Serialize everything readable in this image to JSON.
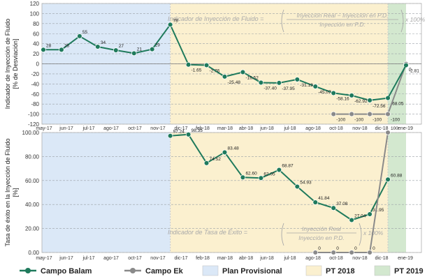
{
  "colors": {
    "balam": "#1f7a5c",
    "ek": "#8a8a8a",
    "plan_provisional": "#dbe8f7",
    "pt2018": "#fbf0cf",
    "pt2019": "#d3e8cf",
    "grid": "#9aa0a6",
    "axis_text": "#333333",
    "formula_text": "#a9a9a9"
  },
  "legend": [
    {
      "label": "Campo Balam",
      "kind": "line",
      "color": "#1f7a5c"
    },
    {
      "label": "Campo Ek",
      "kind": "line",
      "color": "#8a8a8a"
    },
    {
      "label": "Plan Provisional",
      "kind": "box",
      "color": "#dbe8f7"
    },
    {
      "label": "PT 2018",
      "kind": "box",
      "color": "#fbf0cf"
    },
    {
      "label": "PT 2019",
      "kind": "box",
      "color": "#d3e8cf"
    }
  ],
  "chart_data": [
    {
      "type": "line",
      "ylabel": "Indicador de Inyección de Fluido [% de Desviación]",
      "ylim": [
        -120,
        120
      ],
      "yticks": [
        -120,
        -100,
        -80,
        -60,
        -40,
        -20,
        0,
        20,
        40,
        60,
        80,
        100,
        120
      ],
      "x_tick_labels": [
        "may-17",
        "jun-17",
        "jul-17",
        "ago-17",
        "oct-17",
        "nov-17",
        "dic-17",
        "feb-18",
        "mar-18",
        "abr-18",
        "jun-18",
        "jul-18",
        "ago-18",
        "oct-18",
        "nov-18",
        "dic-18",
        "ene-19"
      ],
      "x_range_months": [
        "2017-05",
        "2019-01"
      ],
      "grid": true,
      "periods": [
        {
          "name": "Plan Provisional",
          "from": "2017-05",
          "to": "2017-12"
        },
        {
          "name": "PT 2018",
          "from": "2017-12",
          "to": "2018-12"
        },
        {
          "name": "PT 2019",
          "from": "2018-12",
          "to": "2019-01"
        }
      ],
      "formula": {
        "lhs": "Indicador de Inyección de Fluido =",
        "numerator": "Inyección Real − Inyección en P.D.",
        "denominator": "Inyección en P.D.",
        "suffix": "x 100%"
      },
      "series": [
        {
          "name": "Campo Balam",
          "x": [
            "2017-05",
            "2017-06",
            "2017-07",
            "2017-08",
            "2017-09",
            "2017-10",
            "2017-11",
            "2017-12",
            "2018-01",
            "2018-02",
            "2018-03",
            "2018-04",
            "2018-05",
            "2018-06",
            "2018-07",
            "2018-08",
            "2018-09",
            "2018-10",
            "2018-11",
            "2018-12"
          ],
          "values": [
            28,
            28,
            55,
            34,
            27,
            21,
            29,
            78,
            -1.65,
            -2.76,
            -25.48,
            -16.52,
            -37.4,
            -37.95,
            -31.13,
            -45.07,
            -58.16,
            -62.92,
            -72.56,
            -68.05
          ],
          "labels": [
            "28",
            "28",
            "55",
            "34",
            "27",
            "21",
            "29",
            "78",
            "-1.65",
            "-2.76",
            "-25.48",
            "-16.52",
            "-37.40",
            "-37.95",
            "-31.13",
            "-45.07",
            "-58.16",
            "-62.92",
            "-72.56",
            "-68.05"
          ]
        },
        {
          "name": "Campo Ek",
          "x": [
            "2018-09",
            "2018-10",
            "2018-11",
            "2018-12",
            "2019-01"
          ],
          "values": [
            -100,
            -100,
            -100,
            -100,
            0
          ],
          "labels": [
            "-100",
            "-100",
            "-100",
            "-100",
            "0"
          ]
        },
        {
          "name": "Campo Balam (ene-19)",
          "x": [
            "2019-01"
          ],
          "values": [
            -2.81
          ],
          "labels": [
            "-2.81"
          ]
        }
      ]
    },
    {
      "type": "line",
      "ylabel": "Tasa de éxito en la Inyección de Fluido [%]",
      "ylim": [
        0,
        100
      ],
      "yticks": [
        0,
        20,
        40,
        60,
        80,
        100
      ],
      "ytick_labels": [
        "0.00",
        "20.00",
        "40.00",
        "60.00",
        "80.00",
        "100.00"
      ],
      "x_tick_labels": [
        "may-17",
        "jun-17",
        "jul-17",
        "ago-17",
        "oct-17",
        "nov-17",
        "dic-17",
        "feb-18",
        "mar-18",
        "abr-18",
        "jun-18",
        "jul-18",
        "ago-18",
        "oct-18",
        "nov-18",
        "dic-18",
        "ene-19"
      ],
      "x_range_months": [
        "2017-05",
        "2019-01"
      ],
      "grid": true,
      "periods": [
        {
          "name": "Plan Provisional",
          "from": "2017-05",
          "to": "2017-12"
        },
        {
          "name": "PT 2018",
          "from": "2017-12",
          "to": "2018-12"
        },
        {
          "name": "PT 2019",
          "from": "2018-12",
          "to": "2019-01"
        }
      ],
      "formula": {
        "lhs": "Indicador de Tasa de Éxito =",
        "numerator": "Inyección Real",
        "denominator": "Inyección en P.D.",
        "suffix": "x 100%"
      },
      "series": [
        {
          "name": "Campo Balam",
          "x": [
            "2017-12",
            "2018-01",
            "2018-02",
            "2018-03",
            "2018-04",
            "2018-05",
            "2018-06",
            "2018-07",
            "2018-08",
            "2018-09",
            "2018-10",
            "2018-11",
            "2018-12",
            "2019-01"
          ],
          "values": [
            97.24,
            98.35,
            74.52,
            83.48,
            62.6,
            62.05,
            68.87,
            54.93,
            41.84,
            37.08,
            27.04,
            31.95,
            60.88,
            null
          ],
          "labels": [
            "97.24",
            "98.35",
            "74.52",
            "83.48",
            "62.60",
            "62.05",
            "68.87",
            "54.93",
            "41.84",
            "37.08",
            "27.04",
            "31.95",
            "60.88",
            ""
          ]
        },
        {
          "name": "Campo Ek",
          "x": [
            "2018-08",
            "2018-09",
            "2018-10",
            "2018-11",
            "2018-12"
          ],
          "values": [
            0,
            0,
            0,
            0,
            100
          ],
          "labels": [
            "0",
            "0",
            "0",
            "0",
            "100"
          ]
        }
      ]
    }
  ]
}
